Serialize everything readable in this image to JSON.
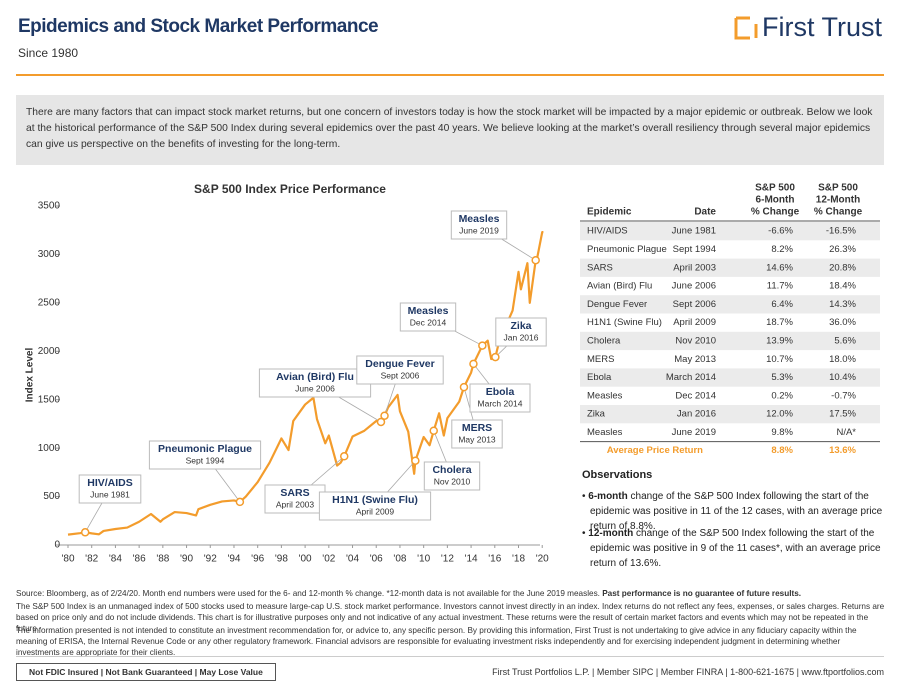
{
  "header": {
    "title": "Epidemics and Stock Market Performance",
    "subtitle": "Since 1980",
    "logo": "First Trust"
  },
  "intro": "There are many factors that can impact stock market returns, but one concern of investors today is how the stock market will be impacted by a major epidemic or outbreak. Below we look at the historical performance of the S&P 500 Index during several epidemics over the past 40 years. We believe looking at the market’s overall resiliency through several major epidemics can give us perspective on the benefits of investing for the long-term.",
  "chart_data": {
    "type": "line",
    "title": "S&P 500 Index Price Performance",
    "y_label": "Index Level",
    "color": "#f39c2c",
    "x": [
      1980,
      1981,
      1981.45,
      1982,
      1982.6,
      1983,
      1984,
      1985,
      1986,
      1987,
      1987.8,
      1988,
      1989,
      1990,
      1990.8,
      1991,
      1992,
      1993,
      1994,
      1994.5,
      1995,
      1996,
      1997,
      1998,
      1998.6,
      1999,
      2000,
      2000.7,
      2001,
      2001.7,
      2002,
      2002.7,
      2003,
      2003.3,
      2004,
      2005,
      2006,
      2006.4,
      2006.7,
      2007,
      2007.8,
      2008,
      2008.7,
      2009.2,
      2009.3,
      2010,
      2010.5,
      2010.85,
      2011.3,
      2011.7,
      2012,
      2013,
      2013.4,
      2014,
      2014.2,
      2014.95,
      2015.4,
      2015.7,
      2016.05,
      2016.5,
      2017,
      2017.5,
      2018,
      2018.2,
      2018.75,
      2018.95,
      2019.45,
      2019.6,
      2020,
      2020.1
    ],
    "values": [
      107,
      122,
      131,
      120,
      110,
      145,
      165,
      180,
      240,
      320,
      240,
      265,
      340,
      330,
      305,
      370,
      415,
      450,
      460,
      445,
      500,
      650,
      850,
      1100,
      980,
      1280,
      1450,
      1520,
      1300,
      1050,
      1130,
      820,
      850,
      916,
      1120,
      1180,
      1280,
      1270,
      1335,
      1420,
      1550,
      1380,
      1170,
      735,
      870,
      1115,
      1030,
      1180,
      1360,
      1130,
      1310,
      1480,
      1630,
      1780,
      1870,
      2059,
      2110,
      1920,
      1940,
      2170,
      2280,
      2420,
      2820,
      2640,
      2910,
      2500,
      2940,
      2980,
      3230,
      3230
    ],
    "xlim": [
      1980,
      2021.5
    ],
    "ylim": [
      0,
      3500
    ],
    "yticks": [
      0,
      500,
      1000,
      1500,
      2000,
      2500,
      3000,
      3500
    ],
    "xticks": [
      {
        "value": 1980,
        "label": "'80"
      },
      {
        "value": 1982,
        "label": "'82"
      },
      {
        "value": 1984,
        "label": "'84"
      },
      {
        "value": 1986,
        "label": "'86"
      },
      {
        "value": 1988,
        "label": "'88"
      },
      {
        "value": 1990,
        "label": "'90"
      },
      {
        "value": 1992,
        "label": "'92"
      },
      {
        "value": 1994,
        "label": "'94"
      },
      {
        "value": 1996,
        "label": "'96"
      },
      {
        "value": 1998,
        "label": "'98"
      },
      {
        "value": 2000,
        "label": "'00"
      },
      {
        "value": 2002,
        "label": "'02"
      },
      {
        "value": 2004,
        "label": "'04"
      },
      {
        "value": 2006,
        "label": "'06"
      },
      {
        "value": 2008,
        "label": "'08"
      },
      {
        "value": 2010,
        "label": "'10"
      },
      {
        "value": 2012,
        "label": "'12"
      },
      {
        "value": 2014,
        "label": "'14"
      },
      {
        "value": 2016,
        "label": "'16"
      },
      {
        "value": 2018,
        "label": "'18"
      },
      {
        "value": 2020,
        "label": "'20"
      }
    ],
    "annotations": [
      {
        "label": "HIV/AIDS",
        "date": "June 1981",
        "x": 1981.45,
        "y": 131
      },
      {
        "label": "Pneumonic Plague",
        "date": "Sept 1994",
        "x": 1994.5,
        "y": 445
      },
      {
        "label": "SARS",
        "date": "April 2003",
        "x": 2003.3,
        "y": 916
      },
      {
        "label": "Avian (Bird) Flu",
        "date": "June 2006",
        "x": 2006.4,
        "y": 1270
      },
      {
        "label": "Dengue Fever",
        "date": "Sept 2006",
        "x": 2006.7,
        "y": 1335
      },
      {
        "label": "H1N1 (Swine Flu)",
        "date": "April 2009",
        "x": 2009.3,
        "y": 870
      },
      {
        "label": "Cholera",
        "date": "Nov 2010",
        "x": 2010.85,
        "y": 1180
      },
      {
        "label": "MERS",
        "date": "May 2013",
        "x": 2013.4,
        "y": 1630
      },
      {
        "label": "Ebola",
        "date": "March 2014",
        "x": 2014.2,
        "y": 1870
      },
      {
        "label": "Measles",
        "date": "Dec 2014",
        "x": 2014.95,
        "y": 2059
      },
      {
        "label": "Zika",
        "date": "Jan 2016",
        "x": 2016.05,
        "y": 1940
      },
      {
        "label": "Measles",
        "date": "June 2019",
        "x": 2019.45,
        "y": 2940
      }
    ]
  },
  "table": {
    "headers": [
      [
        "Epidemic"
      ],
      [
        "Date"
      ],
      [
        "S&P 500",
        "6-Month",
        "% Change"
      ],
      [
        "S&P 500",
        "12-Month",
        "% Change"
      ]
    ],
    "rows": [
      [
        "HIV/AIDS",
        "June 1981",
        "-6.6%",
        "-16.5%"
      ],
      [
        "Pneumonic Plague",
        "Sept 1994",
        "8.2%",
        "26.3%"
      ],
      [
        "SARS",
        "April 2003",
        "14.6%",
        "20.8%"
      ],
      [
        "Avian (Bird) Flu",
        "June 2006",
        "11.7%",
        "18.4%"
      ],
      [
        "Dengue Fever",
        "Sept 2006",
        "6.4%",
        "14.3%"
      ],
      [
        "H1N1 (Swine Flu)",
        "April 2009",
        "18.7%",
        "36.0%"
      ],
      [
        "Cholera",
        "Nov 2010",
        "13.9%",
        "5.6%"
      ],
      [
        "MERS",
        "May 2013",
        "10.7%",
        "18.0%"
      ],
      [
        "Ebola",
        "March 2014",
        "5.3%",
        "10.4%"
      ],
      [
        "Measles",
        "Dec 2014",
        "0.2%",
        "-0.7%"
      ],
      [
        "Zika",
        "Jan 2016",
        "12.0%",
        "17.5%"
      ],
      [
        "Measles",
        "June 2019",
        "9.8%",
        "N/A*"
      ]
    ],
    "average": [
      "Average Price Return",
      "8.8%",
      "13.6%"
    ]
  },
  "observations": {
    "title": "Observations",
    "items": [
      {
        "bold": "6-month",
        "text": " change of the S&P 500 Index following the start of the epidemic was positive in 11 of the 12 cases, with an average price return of 8.8%."
      },
      {
        "bold": "12-month",
        "text": " change of the S&P 500 Index following the start of the epidemic was positive in 9 of the 11 cases*, with an average price return of 13.6%."
      }
    ]
  },
  "footer": {
    "source": "Source: Bloomberg, as of 2/24/20. Month end numbers were used for the 6- and 12-month % change. *12-month data is not available for the June 2019 measles. ",
    "source_bold": "Past performance is no guarantee of future results.",
    "disclosure1": "The S&P 500 Index is an unmanaged index of 500 stocks used to measure large-cap U.S. stock market performance. Investors cannot invest directly in an index. Index returns do not reflect any fees, expenses, or sales charges. Returns are based on price only and do not include dividends. This chart is for illustrative purposes only and not indicative of any actual investment. These returns were the result of certain market factors and events which may not be repeated in the future.",
    "disclosure2": "The information presented is not intended to constitute an investment recommendation for, or advice to, any specific person. By providing this information, First Trust is not undertaking to give advice in any fiduciary capacity within the meaning of ERISA, the Internal Revenue Code or any other regulatory framework. Financial advisors are responsible for evaluating investment risks independently and for exercising independent judgment in determining whether investments are appropriate for their clients.",
    "badge": "Not FDIC Insured | Not Bank Guaranteed | May Lose Value",
    "contact": "First Trust Portfolios L.P.  |  Member SIPC  |  Member FINRA  |  1-800-621-1675  |  www.ftportfolios.com"
  }
}
